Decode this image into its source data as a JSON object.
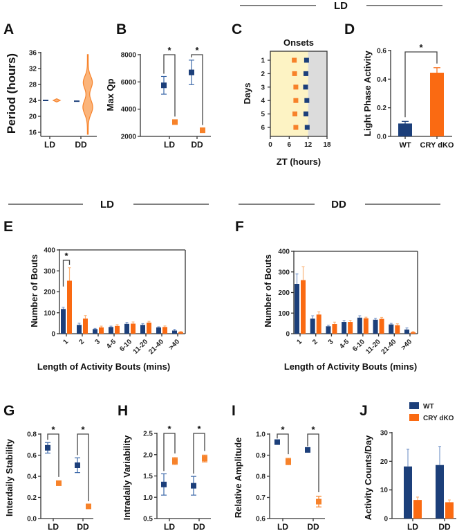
{
  "colors": {
    "wt": "#1c3f7a",
    "ko": "#fa6a12",
    "ko_point": "#f7822a",
    "light": "#fdf3c4",
    "dark": "#dcdcdc",
    "axis": "#333333"
  },
  "section_headers": {
    "top": "LD",
    "mid_left": "LD",
    "mid_right": "DD"
  },
  "legend": {
    "wt": "WT",
    "ko": "CRY dKO"
  },
  "chart_data": [
    {
      "panel": "A",
      "type": "violin",
      "ylabel": "Period (hours)",
      "ylim": [
        16,
        36
      ],
      "yticks": [
        "16",
        "20",
        "24",
        "28",
        "32",
        "36"
      ],
      "categories": [
        "LD",
        "DD"
      ],
      "series": [
        {
          "name": "WT",
          "values": [
            24.0,
            23.8
          ]
        },
        {
          "name": "CRY dKO",
          "values": [
            24.0,
            24.5
          ],
          "range": [
            [
              23.6,
              24.4
            ],
            [
              15.5,
              35.5
            ]
          ],
          "modes": [
            22.3,
            28.5
          ]
        }
      ]
    },
    {
      "panel": "B",
      "type": "scatter",
      "ylabel": "Max Qp",
      "ylim": [
        2000,
        8000
      ],
      "yticks": [
        "2000",
        "4000",
        "6000",
        "8000"
      ],
      "categories": [
        "LD",
        "DD"
      ],
      "series": [
        {
          "name": "WT",
          "values": [
            5750,
            6700
          ],
          "err": [
            650,
            900
          ]
        },
        {
          "name": "CRY dKO",
          "values": [
            3050,
            2450
          ],
          "err": [
            100,
            80
          ]
        }
      ],
      "significance": [
        "*",
        "*"
      ]
    },
    {
      "panel": "C",
      "type": "scatter",
      "title": "Onsets",
      "xlabel": "ZT (hours)",
      "ylabel": "Days",
      "xlim": [
        0,
        18
      ],
      "xticks": [
        "0",
        "6",
        "12",
        "18"
      ],
      "days": [
        "1",
        "2",
        "3",
        "4",
        "5",
        "6"
      ],
      "light_phase": [
        0,
        12
      ],
      "series": [
        {
          "name": "WT",
          "values": [
            11.5,
            11.3,
            11.2,
            11.6,
            11.3,
            11.7
          ]
        },
        {
          "name": "CRY dKO",
          "values": [
            7.6,
            7.7,
            8.1,
            8.1,
            7.8,
            8.1
          ]
        }
      ]
    },
    {
      "panel": "D",
      "type": "bar",
      "ylabel": "Light Phase Activity",
      "ylim": [
        0,
        0.6
      ],
      "yticks": [
        "0.0",
        "0.2",
        "0.4",
        "0.6"
      ],
      "categories": [
        "WT",
        "CRY dKO"
      ],
      "values": [
        0.09,
        0.445
      ],
      "err": [
        0.015,
        0.035
      ],
      "significance": "*"
    },
    {
      "panel": "E",
      "type": "bar",
      "ylabel": "Number of Bouts",
      "xlabel": "Length of Activity Bouts (mins)",
      "ylim": [
        0,
        400
      ],
      "yticks": [
        "0",
        "100",
        "200",
        "300",
        "400"
      ],
      "categories": [
        "1",
        "2",
        "3",
        "4-5",
        "6-10",
        "11-20",
        "21-40",
        ">40"
      ],
      "series": [
        {
          "name": "WT",
          "values": [
            118,
            42,
            22,
            32,
            47,
            42,
            30,
            15
          ],
          "err": [
            8,
            8,
            3,
            4,
            7,
            6,
            3,
            6
          ]
        },
        {
          "name": "CRY dKO",
          "values": [
            253,
            72,
            30,
            37,
            48,
            53,
            32,
            8
          ],
          "err": [
            62,
            15,
            6,
            6,
            8,
            6,
            5,
            3
          ]
        }
      ],
      "significance": "*"
    },
    {
      "panel": "F",
      "type": "bar",
      "ylabel": "Number of Bouts",
      "xlabel": "Length of Activity Bouts (mins)",
      "ylim": [
        0,
        400
      ],
      "yticks": [
        "0",
        "100",
        "200",
        "300",
        "400"
      ],
      "categories": [
        "1",
        "2",
        "3",
        "4-5",
        "6-10",
        "11-20",
        "21-40",
        ">40"
      ],
      "series": [
        {
          "name": "WT",
          "values": [
            242,
            73,
            36,
            57,
            78,
            68,
            45,
            20
          ],
          "err": [
            48,
            14,
            5,
            7,
            9,
            7,
            5,
            8
          ]
        },
        {
          "name": "CRY dKO",
          "values": [
            260,
            93,
            47,
            57,
            75,
            72,
            41,
            7
          ],
          "err": [
            65,
            13,
            9,
            8,
            5,
            7,
            7,
            4
          ]
        }
      ]
    },
    {
      "panel": "G",
      "type": "scatter",
      "ylabel": "Interdaily Stability",
      "ylim": [
        0,
        0.8
      ],
      "yticks": [
        "0.0",
        "0.2",
        "0.4",
        "0.6",
        "0.8"
      ],
      "categories": [
        "LD",
        "DD"
      ],
      "series": [
        {
          "name": "WT",
          "values": [
            0.67,
            0.505
          ],
          "err": [
            0.05,
            0.07
          ]
        },
        {
          "name": "CRY dKO",
          "values": [
            0.335,
            0.115
          ],
          "err": [
            0.02,
            0.01
          ]
        }
      ],
      "significance": [
        "*",
        "*"
      ]
    },
    {
      "panel": "H",
      "type": "scatter",
      "ylabel": "Intradaily Variability",
      "ylim": [
        0.5,
        2.5
      ],
      "yticks": [
        "0.5",
        "1.0",
        "1.5",
        "2.0",
        "2.5"
      ],
      "categories": [
        "LD",
        "DD"
      ],
      "series": [
        {
          "name": "WT",
          "values": [
            1.3,
            1.27
          ],
          "err": [
            0.25,
            0.22
          ]
        },
        {
          "name": "CRY dKO",
          "values": [
            1.85,
            1.91
          ],
          "err": [
            0.08,
            0.08
          ]
        }
      ],
      "significance": [
        "*",
        "*"
      ]
    },
    {
      "panel": "I",
      "type": "scatter",
      "ylabel": "Relative Amplitude",
      "ylim": [
        0.6,
        1.0
      ],
      "yticks": [
        "0.6",
        "0.7",
        "0.8",
        "0.9",
        "1.0"
      ],
      "categories": [
        "LD",
        "DD"
      ],
      "series": [
        {
          "name": "WT",
          "values": [
            0.962,
            0.925
          ],
          "err": [
            0.004,
            0.004
          ]
        },
        {
          "name": "CRY dKO",
          "values": [
            0.87,
            0.68
          ],
          "err": [
            0.015,
            0.025
          ]
        }
      ],
      "significance": [
        "*",
        "*"
      ]
    },
    {
      "panel": "J",
      "type": "bar",
      "ylabel": "Activity Counts/Day",
      "ylim": [
        0,
        30
      ],
      "yticks": [
        "0",
        "10",
        "20",
        "30"
      ],
      "categories": [
        "LD",
        "DD"
      ],
      "legend": "top-right",
      "series": [
        {
          "name": "WT",
          "values": [
            18.2,
            18.7
          ],
          "err": [
            6.0,
            6.5
          ]
        },
        {
          "name": "CRY dKO",
          "values": [
            6.5,
            5.7
          ],
          "err": [
            1.0,
            0.8
          ]
        }
      ]
    }
  ]
}
